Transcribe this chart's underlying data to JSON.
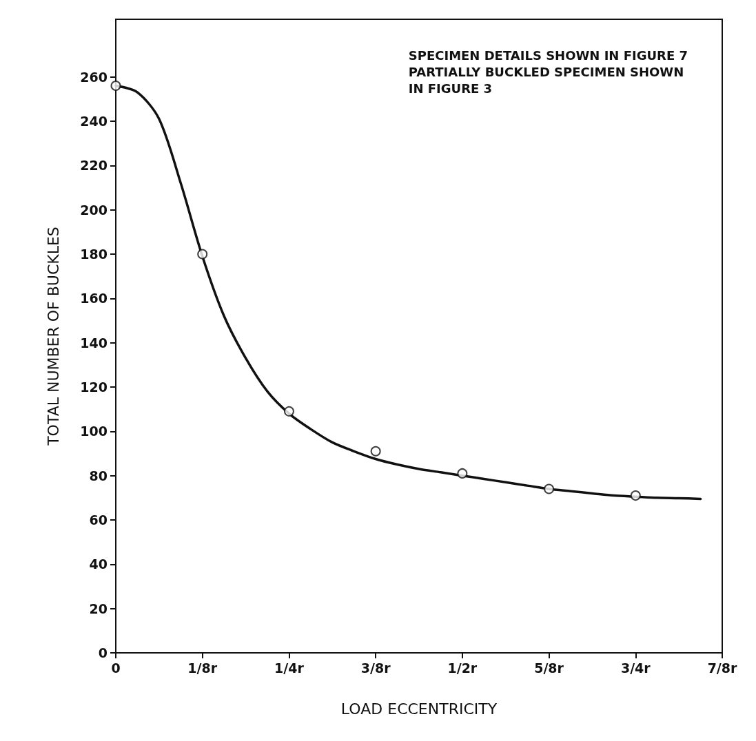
{
  "chart_data": {
    "type": "scatter",
    "xlabel": "LOAD ECCENTRICITY",
    "ylabel": "TOTAL NUMBER OF BUCKLES",
    "annotations": [
      "SPECIMEN DETAILS SHOWN IN FIGURE 7\nPARTIALLY BUCKLED SPECIMEN SHOWN\nIN FIGURE 3"
    ],
    "categories": [
      "0",
      null,
      null,
      null,
      "1/8r",
      null,
      null,
      null,
      "1/4r",
      null,
      null,
      null,
      "3/8r",
      null,
      null,
      null,
      "1/2r",
      null,
      null,
      null,
      "5/8r",
      null,
      null,
      null,
      "3/4r",
      null,
      null,
      null,
      "7/8r"
    ],
    "ylim": [
      0,
      286
    ],
    "yticks": [
      0,
      20,
      40,
      60,
      80,
      100,
      120,
      140,
      160,
      180,
      200,
      220,
      240,
      260
    ],
    "grid": false,
    "marker": "circle",
    "series": [
      {
        "color": "#111111",
        "values": [
          256,
          null,
          null,
          null,
          180,
          null,
          null,
          null,
          109,
          null,
          null,
          null,
          91,
          null,
          null,
          null,
          81,
          null,
          null,
          null,
          74,
          null,
          null,
          null,
          71,
          null,
          null,
          null,
          null
        ]
      },
      {
        "type": "line",
        "color": "#111111",
        "marker": "none",
        "line_style": "solid",
        "values": [
          256,
          253,
          241,
          212,
          179,
          152,
          133,
          118,
          108,
          101,
          95,
          91,
          87.5,
          85,
          83,
          81.5,
          80,
          78.5,
          77,
          75.5,
          74,
          73,
          72,
          71,
          70.5,
          70,
          69.8,
          69.5,
          null
        ]
      }
    ]
  }
}
